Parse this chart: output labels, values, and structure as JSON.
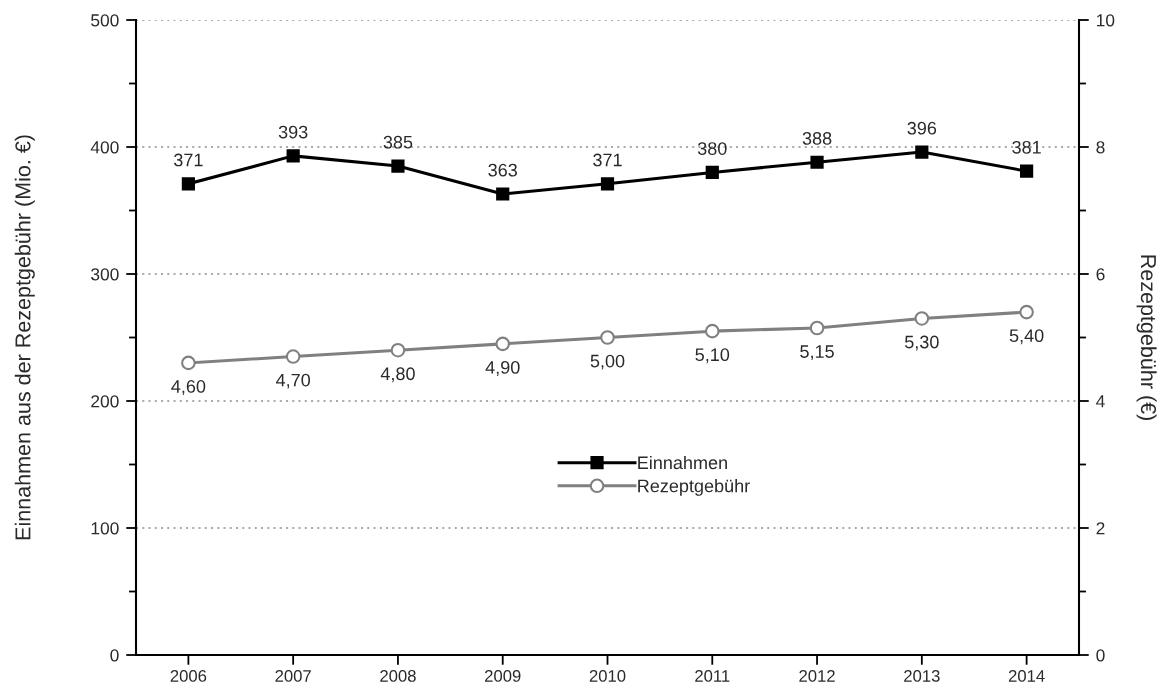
{
  "chart_data": {
    "type": "line",
    "categories": [
      "2006",
      "2007",
      "2008",
      "2009",
      "2010",
      "2011",
      "2012",
      "2013",
      "2014"
    ],
    "ylabel": "Einnahmen aus der Rezeptgebühr (Mio. €)",
    "y2label": "Rezeptgebühr (€)",
    "ylim": [
      0,
      500
    ],
    "yticks": [
      0,
      {
        "value": 50,
        "label": null
      },
      100,
      {
        "value": 150,
        "label": null
      },
      200,
      {
        "value": 250,
        "label": null
      },
      300,
      {
        "value": 350,
        "label": null
      },
      400,
      {
        "value": 450,
        "label": null
      },
      500
    ],
    "y2lim": [
      0,
      10
    ],
    "y2ticks": [
      0,
      {
        "value": 1,
        "label": null
      },
      2,
      {
        "value": 3,
        "label": null
      },
      4,
      {
        "value": 5,
        "label": null
      },
      6,
      {
        "value": 7,
        "label": null
      },
      8,
      {
        "value": 9,
        "label": null
      },
      10
    ],
    "grid": "y",
    "legend": "bottom",
    "series": [
      {
        "name": "Einnahmen",
        "color": "#000000",
        "marker": "square",
        "line_style": "solid",
        "values": [
          371,
          393,
          385,
          363,
          371,
          380,
          388,
          396,
          381
        ],
        "value_labels": [
          "371",
          "393",
          "385",
          "363",
          "371",
          "380",
          "388",
          "396",
          "381"
        ]
      },
      {
        "name": "Rezeptgebühr",
        "color": "#808080",
        "marker": "circle",
        "line_style": "solid",
        "axis": "y2",
        "values": [
          4.6,
          4.7,
          4.8,
          4.9,
          5.0,
          5.1,
          5.15,
          5.3,
          5.4
        ],
        "value_labels": [
          "4,60",
          "4,70",
          "4,80",
          "4,90",
          "5,00",
          "5,10",
          "5,15",
          "5,30",
          "5,40"
        ]
      }
    ]
  }
}
